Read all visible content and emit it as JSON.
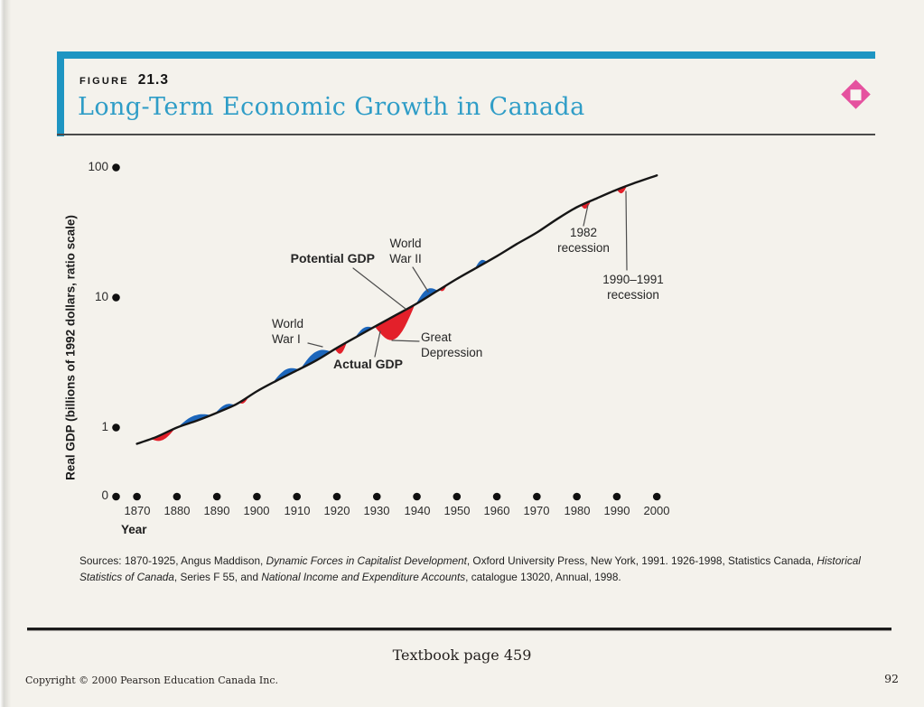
{
  "figure_header": {
    "label": "FIGURE",
    "number": "21.3",
    "title": "Long-Term Economic Growth in Canada",
    "accent_color": "#1e95c2",
    "title_color": "#2f9dc7",
    "diamond_color": "#e5519f"
  },
  "chart_data": {
    "type": "line",
    "title": "Long-Term Economic Growth in Canada",
    "xlabel": "Year",
    "ylabel": "Real GDP (billions of 1992 dollars, ratio scale)",
    "y_scale": "log",
    "xlim": [
      1870,
      2000
    ],
    "x_ticks": [
      1870,
      1880,
      1890,
      1900,
      1910,
      1920,
      1930,
      1940,
      1950,
      1960,
      1970,
      1980,
      1990,
      2000
    ],
    "y_ticks": [
      100,
      10,
      1,
      0
    ],
    "grid": false,
    "legend_position": "none",
    "series": [
      {
        "name": "Potential GDP",
        "color": "#161616",
        "x": [
          1870,
          1875,
          1880,
          1885,
          1890,
          1895,
          1900,
          1905,
          1910,
          1915,
          1920,
          1925,
          1930,
          1935,
          1940,
          1945,
          1950,
          1955,
          1960,
          1965,
          1970,
          1975,
          1980,
          1985,
          1990,
          1995,
          2000
        ],
        "values": [
          0.75,
          0.85,
          1.0,
          1.13,
          1.3,
          1.52,
          1.9,
          2.3,
          2.75,
          3.3,
          4.1,
          5.0,
          6.1,
          7.4,
          9.0,
          11.2,
          13.9,
          17.0,
          20.8,
          25.8,
          31.6,
          40.0,
          49.5,
          58.0,
          67.5,
          77.0,
          87.0
        ]
      }
    ],
    "deviation_colors": {
      "boom": "#1c66bb",
      "slump": "#e3202a"
    },
    "deviations": [
      {
        "from": 1873.5,
        "to": 1879.5,
        "type": "slump",
        "pct": 10
      },
      {
        "from": 1880.2,
        "to": 1888.5,
        "type": "boom",
        "pct": 11
      },
      {
        "from": 1889.5,
        "to": 1894.5,
        "type": "boom",
        "pct": 8
      },
      {
        "from": 1895.5,
        "to": 1898.0,
        "type": "slump",
        "pct": 6
      },
      {
        "from": 1904.0,
        "to": 1910.5,
        "type": "boom",
        "pct": 12
      },
      {
        "from": 1911.0,
        "to": 1918.5,
        "type": "boom",
        "pct": 17
      },
      {
        "from": 1919.5,
        "to": 1922.5,
        "type": "slump",
        "pct": 13
      },
      {
        "from": 1924.5,
        "to": 1929.0,
        "type": "boom",
        "pct": 9
      },
      {
        "from": 1929.5,
        "to": 1939.5,
        "type": "slump",
        "pct": 34
      },
      {
        "from": 1939.8,
        "to": 1945.2,
        "type": "boom",
        "pct": 15
      },
      {
        "from": 1945.6,
        "to": 1947.5,
        "type": "slump",
        "pct": 6
      },
      {
        "from": 1954.5,
        "to": 1957.5,
        "type": "boom",
        "pct": 9
      },
      {
        "from": 1981.0,
        "to": 1983.5,
        "type": "slump",
        "pct": 9
      },
      {
        "from": 1990.0,
        "to": 1992.5,
        "type": "slump",
        "pct": 9
      }
    ],
    "annotations": [
      {
        "text": "Potential GDP"
      },
      {
        "text": "World\nWar II"
      },
      {
        "text": "World\nWar I"
      },
      {
        "text": "Actual GDP"
      },
      {
        "text": "Great\nDepression"
      },
      {
        "text": "1982\nrecession"
      },
      {
        "text": "1990–1991\nrecession"
      }
    ]
  },
  "sources": {
    "seg1": "Sources: 1870-1925, Angus Maddison, ",
    "seg2_italic": "Dynamic Forces in Capitalist Development",
    "seg3": ", Oxford University Press, New York, 1991. 1926-1998, Statistics Canada, ",
    "seg4_italic": "Historical Statistics of Canada",
    "seg5": ", Series F 55, and ",
    "seg6_italic": "National Income and Expenditure Accounts",
    "seg7": ", catalogue 13020, Annual, 1998."
  },
  "page": {
    "textbook_line": "Textbook page 459",
    "copyright": "Copyright © 2000 Pearson Education Canada Inc.",
    "page_number": "92"
  }
}
